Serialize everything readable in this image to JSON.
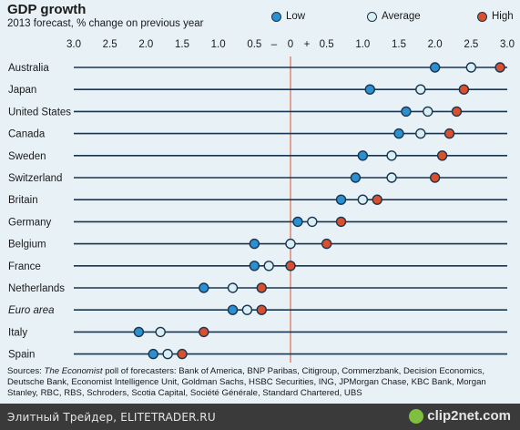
{
  "chart_data": {
    "type": "dot-range",
    "title": "GDP growth",
    "subtitle": "2013 forecast, % change on previous year",
    "x_tick_labels": [
      "3.0",
      "2.5",
      "2.0",
      "1.5",
      "1.0",
      "0.5",
      "–",
      "0",
      "+",
      "0.5",
      "1.0",
      "1.5",
      "2.0",
      "2.5",
      "3.0"
    ],
    "xlim": [
      -3.0,
      3.0
    ],
    "legend": {
      "low": "Low",
      "average": "Average",
      "high": "High"
    },
    "colors": {
      "low": "#2b8fd0",
      "average": "#d8eef2",
      "high": "#d9502e",
      "zero_line": "#d9502e",
      "row_line": "#1a3550",
      "background": "#e7f1f6"
    },
    "countries": [
      {
        "name": "Australia",
        "italic": false,
        "low": 2.0,
        "average": 2.5,
        "high": 2.9
      },
      {
        "name": "Japan",
        "italic": false,
        "low": 1.1,
        "average": 1.8,
        "high": 2.4
      },
      {
        "name": "United States",
        "italic": false,
        "low": 1.6,
        "average": 1.9,
        "high": 2.3
      },
      {
        "name": "Canada",
        "italic": false,
        "low": 1.5,
        "average": 1.8,
        "high": 2.2
      },
      {
        "name": "Sweden",
        "italic": false,
        "low": 1.0,
        "average": 1.4,
        "high": 2.1
      },
      {
        "name": "Switzerland",
        "italic": false,
        "low": 0.9,
        "average": 1.4,
        "high": 2.0
      },
      {
        "name": "Britain",
        "italic": false,
        "low": 0.7,
        "average": 1.0,
        "high": 1.2
      },
      {
        "name": "Germany",
        "italic": false,
        "low": 0.1,
        "average": 0.3,
        "high": 0.7
      },
      {
        "name": "Belgium",
        "italic": false,
        "low": -0.5,
        "average": 0.0,
        "high": 0.5
      },
      {
        "name": "France",
        "italic": false,
        "low": -0.5,
        "average": -0.3,
        "high": 0.0
      },
      {
        "name": "Netherlands",
        "italic": false,
        "low": -1.2,
        "average": -0.8,
        "high": -0.4
      },
      {
        "name": "Euro area",
        "italic": true,
        "low": -0.8,
        "average": -0.6,
        "high": -0.4
      },
      {
        "name": "Italy",
        "italic": false,
        "low": -2.1,
        "average": -1.8,
        "high": -1.2
      },
      {
        "name": "Spain",
        "italic": false,
        "low": -1.9,
        "average": -1.7,
        "high": -1.5
      }
    ]
  },
  "sources": {
    "prefix": "Sources: ",
    "source_name": "The Economist",
    "text": " poll of forecasters: Bank of America, BNP Paribas, Citigroup, Commerzbank, Decision Economics, Deutsche Bank, Economist Intelligence Unit, Goldman Sachs, HSBC Securities, ING, JPMorgan Chase, KBC Bank, Morgan Stanley, RBC, RBS, Schroders, Scotia Capital, Société Générale, Standard Chartered, UBS"
  },
  "footer": {
    "site_text": "Элитный Трейдер, ELITETRADER.RU",
    "logo_text": "clip2net.com"
  }
}
